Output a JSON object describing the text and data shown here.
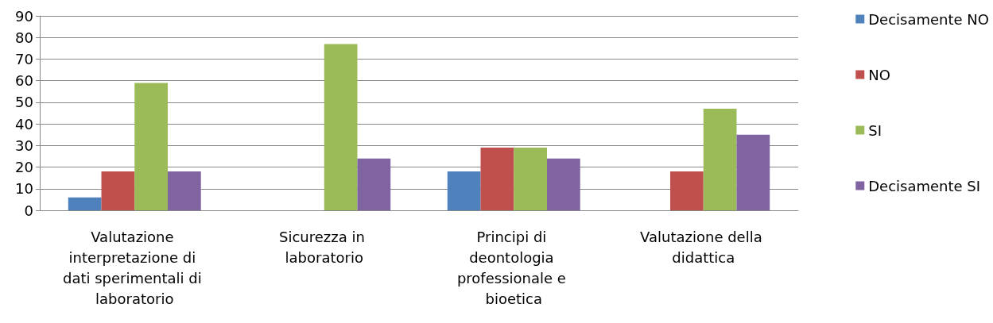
{
  "chart_data": {
    "type": "bar",
    "categories": [
      "Valutazione interpretazione di dati sperimentali di laboratorio",
      "Sicurezza in laboratorio",
      "Principi di deontologia professionale e bioetica",
      "Valutazione della didattica"
    ],
    "series": [
      {
        "name": "Decisamente NO",
        "color": "#4f81bd",
        "values": [
          6,
          0,
          18,
          0
        ]
      },
      {
        "name": "NO",
        "color": "#c0504d",
        "values": [
          18,
          0,
          29,
          18
        ]
      },
      {
        "name": "SI",
        "color": "#9bbb59",
        "values": [
          59,
          77,
          29,
          47
        ]
      },
      {
        "name": "Decisamente SI",
        "color": "#8064a2",
        "values": [
          18,
          24,
          24,
          35
        ]
      }
    ],
    "ylim": [
      0,
      90
    ],
    "yticks": [
      0,
      10,
      20,
      30,
      40,
      50,
      60,
      70,
      80,
      90
    ],
    "grid": "y",
    "legend": "right"
  }
}
